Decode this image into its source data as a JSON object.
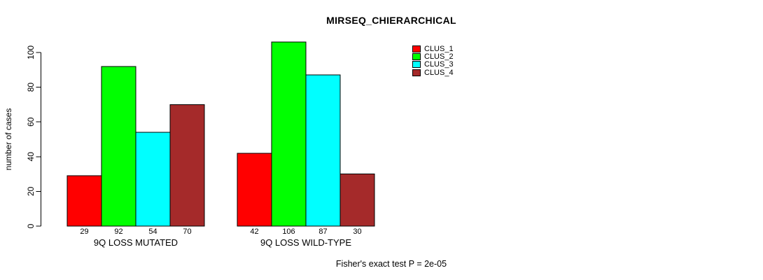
{
  "chart_data": {
    "type": "bar",
    "title": "MIRSEQ_CHIERARCHICAL",
    "xlabel": "",
    "ylabel": "number of cases",
    "ylim": [
      0,
      100
    ],
    "yticks": [
      0,
      20,
      40,
      60,
      80,
      100
    ],
    "categories": [
      "9Q LOSS MUTATED",
      "9Q LOSS WILD-TYPE"
    ],
    "series": [
      {
        "name": "CLUS_1",
        "color": "#ff0000",
        "values": [
          29,
          42
        ]
      },
      {
        "name": "CLUS_2",
        "color": "#00ff00",
        "values": [
          92,
          106
        ]
      },
      {
        "name": "CLUS_3",
        "color": "#00ffff",
        "values": [
          54,
          87
        ]
      },
      {
        "name": "CLUS_4",
        "color": "#a52a2a",
        "values": [
          70,
          30
        ]
      }
    ],
    "bar_value_labels_shown": true,
    "legend_position": "top-right",
    "grid": "off",
    "annotation": "Fisher's exact test P = 2e-05"
  }
}
